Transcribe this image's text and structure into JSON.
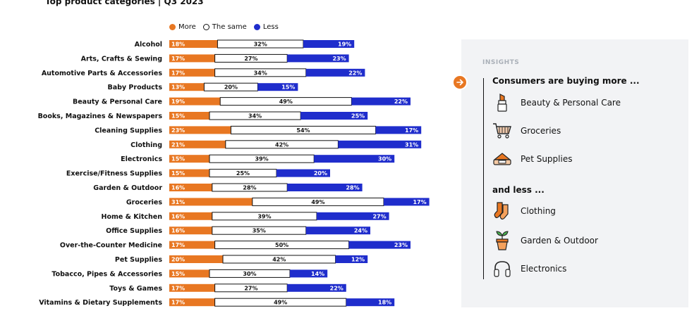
{
  "title": "Top product categories | Q3 2023",
  "legend": [
    {
      "label": "More",
      "color": "#e87722"
    },
    {
      "label": "The same",
      "color": "#ffffff"
    },
    {
      "label": "Less",
      "color": "#1f2dcc"
    }
  ],
  "chart_data": {
    "type": "bar",
    "stacked": true,
    "orientation": "horizontal",
    "title": "Top product categories | Q3 2023",
    "categories": [
      "Alcohol",
      "Arts, Crafts & Sewing",
      "Automotive Parts & Accessories",
      "Baby Products",
      "Beauty & Personal Care",
      "Books, Magazines & Newspapers",
      "Cleaning Supplies",
      "Clothing",
      "Electronics",
      "Exercise/Fitness Supplies",
      "Garden & Outdoor",
      "Groceries",
      "Home & Kitchen",
      "Office Supplies",
      "Over-the-Counter Medicine",
      "Pet Supplies",
      "Tobacco, Pipes & Accessories",
      "Toys & Games",
      "Vitamins & Dietary Supplements"
    ],
    "series": [
      {
        "name": "More",
        "color": "#e87722",
        "values": [
          18,
          17,
          17,
          13,
          19,
          15,
          23,
          21,
          15,
          15,
          16,
          31,
          16,
          16,
          17,
          20,
          15,
          17,
          17
        ]
      },
      {
        "name": "The same",
        "color": "#ffffff",
        "values": [
          32,
          27,
          34,
          20,
          49,
          34,
          54,
          42,
          39,
          25,
          28,
          49,
          39,
          35,
          50,
          42,
          30,
          27,
          49
        ]
      },
      {
        "name": "Less",
        "color": "#1f2dcc",
        "values": [
          19,
          23,
          22,
          15,
          22,
          25,
          17,
          31,
          30,
          20,
          28,
          17,
          27,
          24,
          23,
          12,
          14,
          22,
          18
        ]
      }
    ],
    "value_suffix": "%"
  },
  "insights": {
    "label": "INSIGHTS",
    "more_heading": "Consumers are buying more ...",
    "more_items": [
      {
        "label": "Beauty & Personal Care",
        "icon": "lipstick-icon"
      },
      {
        "label": "Groceries",
        "icon": "shopping-cart-icon"
      },
      {
        "label": "Pet Supplies",
        "icon": "pet-bed-icon"
      }
    ],
    "less_heading": "and less ...",
    "less_items": [
      {
        "label": "Clothing",
        "icon": "socks-icon"
      },
      {
        "label": "Garden & Outdoor",
        "icon": "potted-plant-icon"
      },
      {
        "label": "Electronics",
        "icon": "headphones-icon"
      }
    ],
    "accent": "#e87722"
  }
}
